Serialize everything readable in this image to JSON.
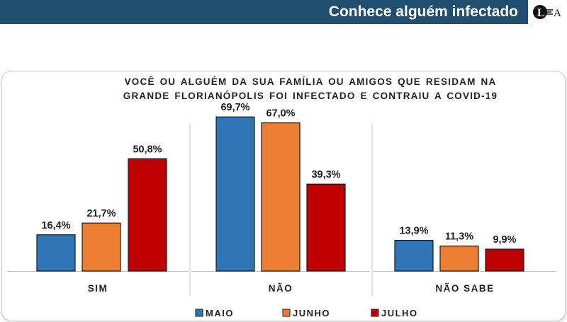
{
  "header": {
    "title": "Conhece alguém infectado"
  },
  "colors": {
    "header_bg": "#1f4e70",
    "maio": "#2e75b6",
    "junho": "#ed7d31",
    "julho": "#c00000"
  },
  "chart_data": {
    "type": "bar",
    "title_lines": [
      "VOCÊ OU ALGUÉM DA SUA FAMÍLIA OU AMIGOS QUE RESIDAM NA",
      "GRANDE FLORIANÓPOLIS FOI INFECTADO E CONTRAIU A COVID-19"
    ],
    "categories": [
      "SIM",
      "NÃO",
      "NÃO SABE"
    ],
    "series": [
      {
        "name": "MAIO",
        "color": "#2e75b6",
        "values": [
          16.4,
          69.7,
          13.9
        ],
        "labels": [
          "16,4%",
          "69,7%",
          "13,9%"
        ]
      },
      {
        "name": "JUNHO",
        "color": "#ed7d31",
        "values": [
          21.7,
          67.0,
          11.3
        ],
        "labels": [
          "21,7%",
          "67,0%",
          "11,3%"
        ]
      },
      {
        "name": "JULHO",
        "color": "#c00000",
        "values": [
          50.8,
          39.3,
          9.9
        ],
        "labels": [
          "50,8%",
          "39,3%",
          "9,9%"
        ]
      }
    ],
    "ylim": [
      0,
      80
    ],
    "grid": false,
    "legend_position": "bottom"
  }
}
